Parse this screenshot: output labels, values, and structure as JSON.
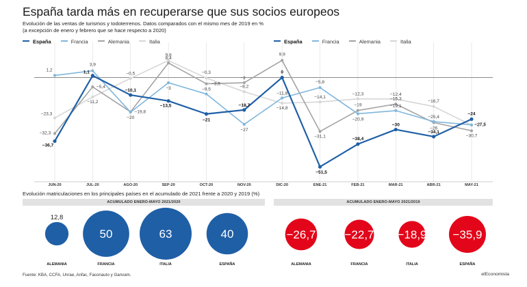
{
  "title": "España tarda más en recuperarse que sus socios europeos",
  "subtitle": "Evolución de las ventas de turismos y todoterrenos. Datos comparados con el mismo mes de 2019 en % (a excepción de enero y febrero que se hace respecto a 2020)",
  "legend": [
    {
      "label": "España",
      "color": "#1f5fa6",
      "bold": true
    },
    {
      "label": "Francia",
      "color": "#7fb6dc",
      "bold": false
    },
    {
      "label": "Alemania",
      "color": "#a3a3a3",
      "bold": false
    },
    {
      "label": "Italia",
      "color": "#d6d6d6",
      "bold": false
    }
  ],
  "chart_data": [
    {
      "type": "line",
      "categories": [
        "JUN-20",
        "JUL-20",
        "AGO-20",
        "SEP-20",
        "OCT-20",
        "NOV-20",
        "DIC-20",
        "ENE-21",
        "FEB-21",
        "MAR-21",
        "ABR-21",
        "MAY-21"
      ],
      "ylim": [
        -55,
        12
      ],
      "baseline": 0,
      "series": [
        {
          "name": "España",
          "color": "#1f5fa6",
          "width": 2.2,
          "values": [
            -36.7,
            1.1,
            -10.1,
            -13.5,
            -21,
            -18.7,
            0,
            -51.5,
            -38.4,
            -30,
            -34.1,
            -24
          ],
          "labels": [
            "−36,7",
            "1,1",
            "−10,1",
            "−13,5",
            "−21",
            "−18,7",
            "0",
            "−51,5",
            "−38,4",
            "−30",
            "−34,1",
            "−24"
          ]
        },
        {
          "name": "Francia",
          "color": "#7fb6dc",
          "width": 1.6,
          "values": [
            1.2,
            3.9,
            -20,
            -3,
            -9.5,
            -27,
            -11.8,
            -5.8,
            -20.9,
            -19.1,
            -25.4,
            -27.3
          ],
          "labels": [
            "1,2",
            "3,9",
            "−20",
            "−3",
            "−9,5",
            "−27",
            "−11,8",
            "−5,8",
            "−20,9",
            "−19,1",
            "−25,4",
            "−27,3"
          ]
        },
        {
          "name": "Alemania",
          "color": "#a3a3a3",
          "width": 1.6,
          "values": [
            -32.3,
            -5.4,
            -19.8,
            8.4,
            -3.6,
            -3,
            9.9,
            -31.1,
            -19,
            -15.3,
            -26,
            -30.7
          ],
          "labels": [
            "−32,3",
            "−5,4",
            "−19,8",
            "8,4",
            "−3,6",
            "−3",
            "9,9",
            "−31,1",
            "−19",
            "−15,3",
            "−26",
            "−30,7"
          ]
        },
        {
          "name": "Italia",
          "color": "#d6d6d6",
          "width": 1.6,
          "values": [
            -23.3,
            -11.2,
            -0.5,
            9.8,
            -0.3,
            -8.2,
            -14.8,
            -14.1,
            -12.3,
            -12.4,
            -16.7,
            -27.5
          ],
          "labels": [
            "−23,3",
            "−11,2",
            "−0,5",
            "9,8",
            "−0,3",
            "−8,2",
            "−14,8",
            "−14,1",
            "−12,3",
            "−12,4",
            "−16,7",
            "−27,5"
          ]
        }
      ]
    },
    {
      "type": "bubble",
      "title": "ACUMULADO ENERO-MAYO 2021/2020",
      "categories": [
        "ALEMANIA",
        "FRANCIA",
        "ITALIA",
        "ESPAÑA"
      ],
      "values": [
        12.8,
        50,
        63,
        40
      ],
      "labels": [
        "12,8",
        "50",
        "63",
        "40"
      ],
      "color": "#1f5fa6"
    },
    {
      "type": "bubble",
      "title": "ACUMULADO ENERO-MAYO 2021/2019",
      "categories": [
        "ALEMANIA",
        "FRANCIA",
        "ITALIA",
        "ESPAÑA"
      ],
      "values": [
        -26.7,
        -22.7,
        -18.9,
        -35.9
      ],
      "labels": [
        "−26,7",
        "−22,7",
        "−18,9",
        "−35,9"
      ],
      "color": "#e3061a"
    }
  ],
  "section2_title": "Evolución matriculaciones en los principales países en el acumulado de 2021 frente a 2020 y 2019 (%)",
  "source": "Fuente: KBA, CCFA, Unrae, Anfac, Faconauto y Ganvam.",
  "brand": "elEconomista"
}
